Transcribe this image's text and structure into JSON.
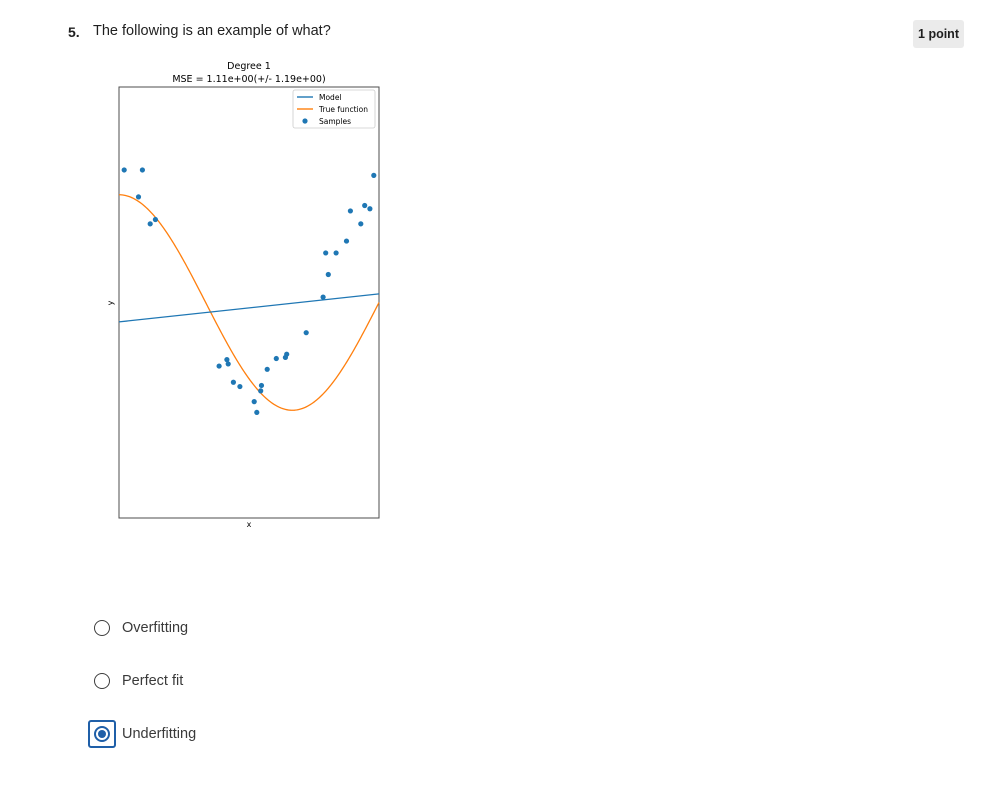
{
  "question": {
    "number": "5.",
    "text": "The following is an example of what?",
    "points": "1 point"
  },
  "chart_data": {
    "type": "line",
    "title": "Degree 1",
    "subtitle": "MSE = 1.11e+00(+/- 1.19e+00)",
    "xlabel": "x",
    "ylabel": "y",
    "xlim": [
      0,
      1
    ],
    "ylim": [
      -2,
      2
    ],
    "legend_position": "top-right",
    "grid": false,
    "legend": [
      "Model",
      "True function",
      "Samples"
    ],
    "colors": {
      "model": "#1f77b4",
      "true_function": "#ff7f0e",
      "samples": "#1f77b4"
    },
    "series": [
      {
        "name": "Model",
        "kind": "line",
        "points": [
          [
            0,
            -0.18
          ],
          [
            1,
            0.08
          ]
        ]
      },
      {
        "name": "True function",
        "kind": "line",
        "function": "cos(1.5*pi*x)"
      },
      {
        "name": "Samples",
        "kind": "scatter",
        "points": [
          [
            0.02,
            1.23
          ],
          [
            0.09,
            1.23
          ],
          [
            0.075,
            0.98
          ],
          [
            0.12,
            0.73
          ],
          [
            0.14,
            0.77
          ],
          [
            0.385,
            -0.59
          ],
          [
            0.415,
            -0.53
          ],
          [
            0.42,
            -0.57
          ],
          [
            0.44,
            -0.74
          ],
          [
            0.465,
            -0.78
          ],
          [
            0.52,
            -0.92
          ],
          [
            0.53,
            -1.02
          ],
          [
            0.545,
            -0.82
          ],
          [
            0.548,
            -0.77
          ],
          [
            0.57,
            -0.62
          ],
          [
            0.605,
            -0.52
          ],
          [
            0.64,
            -0.51
          ],
          [
            0.645,
            -0.48
          ],
          [
            0.72,
            -0.28
          ],
          [
            0.785,
            0.05
          ],
          [
            0.795,
            0.46
          ],
          [
            0.805,
            0.26
          ],
          [
            0.835,
            0.46
          ],
          [
            0.875,
            0.57
          ],
          [
            0.89,
            0.85
          ],
          [
            0.93,
            0.73
          ],
          [
            0.945,
            0.9
          ],
          [
            0.965,
            0.87
          ],
          [
            0.98,
            1.18
          ]
        ]
      }
    ]
  },
  "answers": {
    "options": [
      {
        "label": "Overfitting",
        "selected": false
      },
      {
        "label": "Perfect fit",
        "selected": false
      },
      {
        "label": "Underfitting",
        "selected": true
      }
    ]
  }
}
